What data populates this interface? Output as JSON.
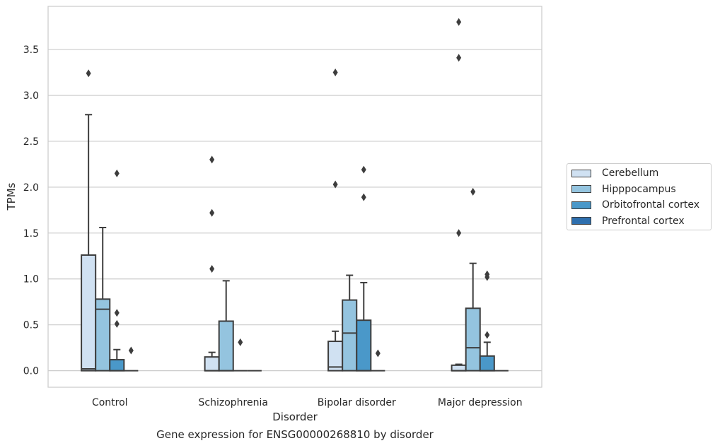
{
  "chart_data": {
    "type": "box",
    "title": "",
    "caption": "Gene expression for ENSG00000268810 by disorder",
    "xlabel": "Disorder",
    "ylabel": "TPMs",
    "ylim": [
      -0.18,
      3.97
    ],
    "yticks": [
      0.0,
      0.5,
      1.0,
      1.5,
      2.0,
      2.5,
      3.0,
      3.5
    ],
    "ytick_labels": [
      "0.0",
      "0.5",
      "1.0",
      "1.5",
      "2.0",
      "2.5",
      "3.0",
      "3.5"
    ],
    "grid": true,
    "legend_position": "right",
    "categories": [
      "Control",
      "Schizophrenia",
      "Bipolar disorder",
      "Major depression"
    ],
    "series": [
      {
        "name": "Cerebellum",
        "color": "#d0e1f2",
        "boxes": [
          {
            "whislo": 0.0,
            "q1": 0.0,
            "med": 0.02,
            "q3": 1.26,
            "whishi": 2.79,
            "fliers": [
              3.24
            ]
          },
          {
            "whislo": 0.0,
            "q1": 0.0,
            "med": 0.0,
            "q3": 0.15,
            "whishi": 0.2,
            "fliers": [
              2.3,
              1.72,
              1.11
            ]
          },
          {
            "whislo": 0.0,
            "q1": 0.0,
            "med": 0.04,
            "q3": 0.32,
            "whishi": 0.43,
            "fliers": [
              3.25,
              2.03
            ]
          },
          {
            "whislo": 0.0,
            "q1": 0.0,
            "med": 0.0,
            "q3": 0.06,
            "whishi": 0.07,
            "fliers": [
              3.8,
              3.41,
              1.5
            ]
          }
        ]
      },
      {
        "name": "Hipppocampus",
        "color": "#94c4df",
        "boxes": [
          {
            "whislo": 0.0,
            "q1": 0.0,
            "med": 0.67,
            "q3": 0.78,
            "whishi": 1.56,
            "fliers": []
          },
          {
            "whislo": 0.0,
            "q1": 0.0,
            "med": 0.0,
            "q3": 0.54,
            "whishi": 0.98,
            "fliers": []
          },
          {
            "whislo": 0.0,
            "q1": 0.0,
            "med": 0.41,
            "q3": 0.77,
            "whishi": 1.04,
            "fliers": []
          },
          {
            "whislo": 0.0,
            "q1": 0.0,
            "med": 0.25,
            "q3": 0.68,
            "whishi": 1.17,
            "fliers": [
              1.95
            ]
          }
        ]
      },
      {
        "name": "Orbitofrontal cortex",
        "color": "#4a98c9",
        "boxes": [
          {
            "whislo": 0.0,
            "q1": 0.0,
            "med": 0.0,
            "q3": 0.12,
            "whishi": 0.23,
            "fliers": [
              2.15,
              0.63,
              0.51
            ]
          },
          {
            "whislo": 0.0,
            "q1": 0.0,
            "med": 0.0,
            "q3": 0.0,
            "whishi": 0.0,
            "fliers": [
              0.31
            ]
          },
          {
            "whislo": 0.0,
            "q1": 0.0,
            "med": 0.0,
            "q3": 0.55,
            "whishi": 0.96,
            "fliers": [
              2.19,
              1.89
            ]
          },
          {
            "whislo": 0.0,
            "q1": 0.0,
            "med": 0.0,
            "q3": 0.16,
            "whishi": 0.31,
            "fliers": [
              1.05,
              1.02,
              0.39
            ]
          }
        ]
      },
      {
        "name": "Prefrontal cortex",
        "color": "#2e6fae",
        "boxes": [
          {
            "whislo": 0.0,
            "q1": 0.0,
            "med": 0.0,
            "q3": 0.0,
            "whishi": 0.0,
            "fliers": [
              0.22
            ]
          },
          {
            "whislo": 0.0,
            "q1": 0.0,
            "med": 0.0,
            "q3": 0.0,
            "whishi": 0.0,
            "fliers": []
          },
          {
            "whislo": 0.0,
            "q1": 0.0,
            "med": 0.0,
            "q3": 0.0,
            "whishi": 0.0,
            "fliers": [
              0.19
            ]
          },
          {
            "whislo": 0.0,
            "q1": 0.0,
            "med": 0.0,
            "q3": 0.0,
            "whishi": 0.0,
            "fliers": []
          }
        ]
      }
    ]
  }
}
